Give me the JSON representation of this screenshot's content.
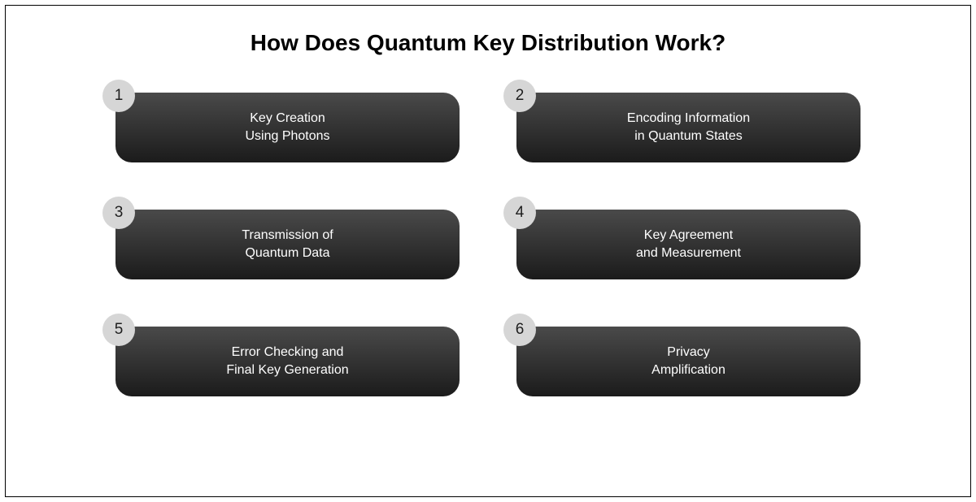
{
  "title": {
    "text": "How Does Quantum Key Distribution Work?",
    "fontsize": 28,
    "color": "#000000"
  },
  "layout": {
    "columns": 2,
    "rows": 3
  },
  "badge_style": {
    "diameter": 40,
    "background": "#d6d6d6",
    "color": "#1e1e1e",
    "fontsize": 19
  },
  "pill_style": {
    "height": 86,
    "border_radius": 20,
    "gradient_top": "#4a4a4a",
    "gradient_bottom": "#1b1b1b",
    "text_color": "#ffffff",
    "fontsize": 16
  },
  "steps": [
    {
      "number": "1",
      "label": "Key Creation\nUsing Photons"
    },
    {
      "number": "2",
      "label": "Encoding Information\nin Quantum States"
    },
    {
      "number": "3",
      "label": "Transmission of\nQuantum Data"
    },
    {
      "number": "4",
      "label": "Key Agreement\nand Measurement"
    },
    {
      "number": "5",
      "label": "Error Checking and\nFinal Key Generation"
    },
    {
      "number": "6",
      "label": "Privacy\nAmplification"
    }
  ]
}
